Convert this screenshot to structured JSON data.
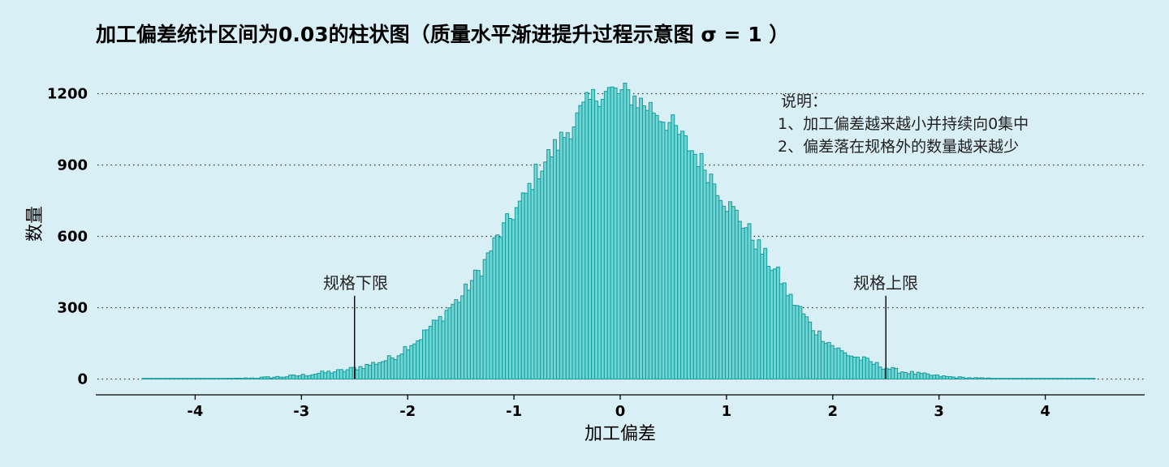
{
  "chart_data": {
    "type": "bar",
    "title": "加工偏差统计区间为0.03的柱状图（质量水平渐进提升过程示意图 σ = 1 ）",
    "xlabel": "加工偏差",
    "ylabel": "数量",
    "xlim": [
      -4.95,
      4.95
    ],
    "ylim": [
      -40,
      1300
    ],
    "bin_width": 0.03,
    "x_ticks": [
      -4,
      -3,
      -2,
      -1,
      0,
      1,
      2,
      3,
      4
    ],
    "x_tick_labels": [
      "-4",
      "-3",
      "-2",
      "-1",
      "0",
      "1",
      "2",
      "3",
      "4"
    ],
    "y_ticks": [
      0,
      300,
      600,
      900,
      1200
    ],
    "y_tick_labels": [
      "0",
      "300",
      "600",
      "900",
      "1200"
    ],
    "grid": "horizontal-dotted",
    "bar_fill": "#6fd6d6",
    "bar_stroke": "#1a9a9a",
    "bins": [
      {
        "x": -4.5,
        "y": 0
      },
      {
        "x": -4.0,
        "y": 0
      },
      {
        "x": -3.6,
        "y": 2
      },
      {
        "x": -3.4,
        "y": 5
      },
      {
        "x": -3.2,
        "y": 9
      },
      {
        "x": -3.0,
        "y": 15
      },
      {
        "x": -2.8,
        "y": 26
      },
      {
        "x": -2.6,
        "y": 35
      },
      {
        "x": -2.4,
        "y": 55
      },
      {
        "x": -2.3,
        "y": 68
      },
      {
        "x": -2.2,
        "y": 80
      },
      {
        "x": -2.1,
        "y": 100
      },
      {
        "x": -2.0,
        "y": 140
      },
      {
        "x": -1.9,
        "y": 165
      },
      {
        "x": -1.8,
        "y": 215
      },
      {
        "x": -1.7,
        "y": 250
      },
      {
        "x": -1.6,
        "y": 305
      },
      {
        "x": -1.5,
        "y": 340
      },
      {
        "x": -1.4,
        "y": 410
      },
      {
        "x": -1.3,
        "y": 470
      },
      {
        "x": -1.2,
        "y": 560
      },
      {
        "x": -1.1,
        "y": 630
      },
      {
        "x": -1.0,
        "y": 700
      },
      {
        "x": -0.9,
        "y": 760
      },
      {
        "x": -0.8,
        "y": 860
      },
      {
        "x": -0.7,
        "y": 920
      },
      {
        "x": -0.6,
        "y": 980
      },
      {
        "x": -0.5,
        "y": 1040
      },
      {
        "x": -0.4,
        "y": 1100
      },
      {
        "x": -0.3,
        "y": 1160
      },
      {
        "x": -0.2,
        "y": 1200
      },
      {
        "x": -0.1,
        "y": 1210
      },
      {
        "x": 0.0,
        "y": 1200
      },
      {
        "x": 0.1,
        "y": 1195
      },
      {
        "x": 0.2,
        "y": 1160
      },
      {
        "x": 0.3,
        "y": 1140
      },
      {
        "x": 0.4,
        "y": 1100
      },
      {
        "x": 0.5,
        "y": 1060
      },
      {
        "x": 0.6,
        "y": 1000
      },
      {
        "x": 0.7,
        "y": 950
      },
      {
        "x": 0.8,
        "y": 890
      },
      {
        "x": 0.9,
        "y": 820
      },
      {
        "x": 1.0,
        "y": 740
      },
      {
        "x": 1.1,
        "y": 690
      },
      {
        "x": 1.2,
        "y": 630
      },
      {
        "x": 1.3,
        "y": 560
      },
      {
        "x": 1.4,
        "y": 490
      },
      {
        "x": 1.5,
        "y": 430
      },
      {
        "x": 1.6,
        "y": 340
      },
      {
        "x": 1.7,
        "y": 290
      },
      {
        "x": 1.8,
        "y": 220
      },
      {
        "x": 1.9,
        "y": 180
      },
      {
        "x": 2.0,
        "y": 140
      },
      {
        "x": 2.1,
        "y": 110
      },
      {
        "x": 2.2,
        "y": 95
      },
      {
        "x": 2.3,
        "y": 80
      },
      {
        "x": 2.4,
        "y": 62
      },
      {
        "x": 2.5,
        "y": 48
      },
      {
        "x": 2.6,
        "y": 35
      },
      {
        "x": 2.8,
        "y": 22
      },
      {
        "x": 3.0,
        "y": 12
      },
      {
        "x": 3.2,
        "y": 6
      },
      {
        "x": 3.4,
        "y": 3
      },
      {
        "x": 3.6,
        "y": 1
      },
      {
        "x": 4.0,
        "y": 0
      },
      {
        "x": 4.45,
        "y": 0
      }
    ],
    "annotations": {
      "note_title": "说明：",
      "note_line1": "1、加工偏差越来越小并持续向0集中",
      "note_line2": "2、偏差落在规格外的数量越来越少",
      "lsl_label": "规格下限",
      "usl_label": "规格上限",
      "lsl_x": -2.5,
      "usl_x": 2.5,
      "spec_line_top": 350
    }
  }
}
